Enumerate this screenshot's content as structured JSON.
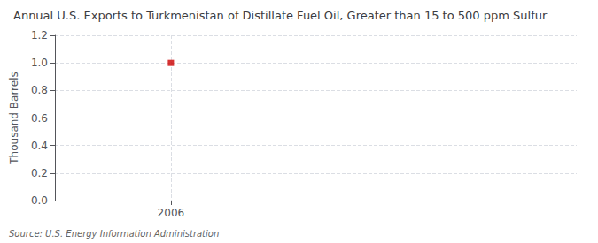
{
  "chart_data": {
    "type": "scatter",
    "title": "Annual U.S. Exports to Turkmenistan of Distillate Fuel Oil, Greater than 15 to 500 ppm Sulfur",
    "ylabel": "Thousand Barrels",
    "source": "Source: U.S. Energy Information Administration",
    "x": [
      2006
    ],
    "values": [
      1.0
    ],
    "color": "#cc0000",
    "marker": "square",
    "xlim": [
      2005.6,
      2007.4
    ],
    "xticks": [
      2006
    ],
    "ylim": [
      0.0,
      1.2
    ],
    "yticks": [
      {
        "value": 0.0,
        "label": "0.0"
      },
      0.2,
      0.4,
      0.6,
      0.8,
      {
        "value": 1.0,
        "label": "1.0"
      },
      1.2
    ],
    "grid": true
  }
}
